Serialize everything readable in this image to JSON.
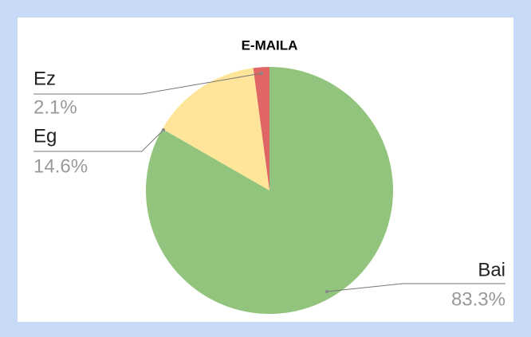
{
  "chart_data": {
    "type": "pie",
    "title": "E-MAILA",
    "categories": [
      "Bai",
      "Eg",
      "Ez"
    ],
    "values": [
      83.3,
      14.6,
      2.1
    ],
    "value_labels": [
      "83.3%",
      "14.6%",
      "2.1%"
    ],
    "colors": [
      "#93c47d",
      "#ffe599",
      "#e06666"
    ]
  }
}
